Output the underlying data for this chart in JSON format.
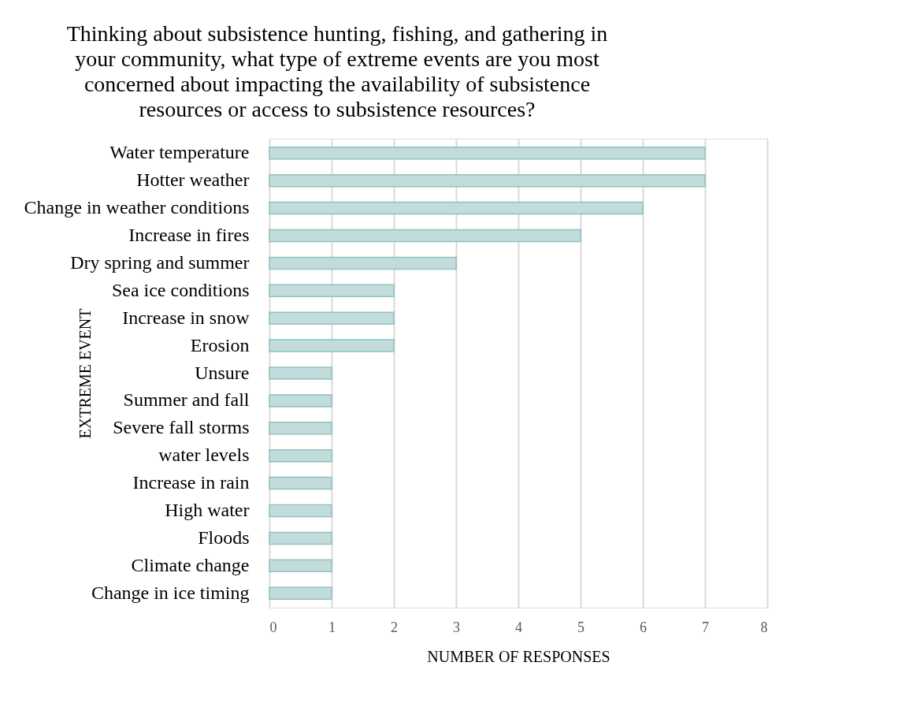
{
  "chart_data": {
    "type": "bar",
    "orientation": "horizontal",
    "title": "Thinking about subsistence hunting, fishing, and gathering in your community, what type of extreme events are you most concerned about impacting the availability of subsistence resources or access to subsistence resources?",
    "xlabel": "NUMBER OF RESPONSES",
    "ylabel": "EXTREME EVENT",
    "categories": [
      "Water temperature",
      "Hotter weather",
      "Change in weather conditions",
      "Increase in fires",
      "Dry spring and summer",
      "Sea ice conditions",
      "Increase in snow",
      "Erosion",
      "Unsure",
      "Summer and fall",
      "Severe fall storms",
      "water levels",
      "Increase in rain",
      "High water",
      "Floods",
      "Climate change",
      "Change in ice timing"
    ],
    "values": [
      7,
      7,
      6,
      5,
      3,
      2,
      2,
      2,
      1,
      1,
      1,
      1,
      1,
      1,
      1,
      1,
      1
    ],
    "color": "#c2dcdc",
    "xlim": [
      0,
      8
    ],
    "xticks": [
      0,
      1,
      2,
      3,
      4,
      5,
      6,
      7,
      8
    ],
    "grid": "x"
  }
}
